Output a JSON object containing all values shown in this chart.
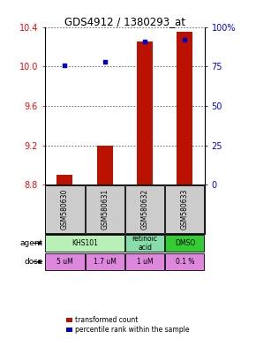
{
  "title": "GDS4912 / 1380293_at",
  "samples": [
    "GSM580630",
    "GSM580631",
    "GSM580632",
    "GSM580633"
  ],
  "bar_values": [
    8.9,
    9.2,
    10.25,
    10.35
  ],
  "bar_base": 8.8,
  "percentile_values": [
    76,
    78,
    91,
    92
  ],
  "ylim_left": [
    8.8,
    10.4
  ],
  "ylim_right": [
    0,
    100
  ],
  "yticks_left": [
    8.8,
    9.2,
    9.6,
    10.0,
    10.4
  ],
  "yticks_right": [
    0,
    25,
    50,
    75,
    100
  ],
  "bar_color": "#bb1100",
  "percentile_color": "#0000cc",
  "agent_spans": [
    [
      0,
      2,
      "KHS101",
      "#b8f0b8"
    ],
    [
      2,
      3,
      "retinoic\nacid",
      "#88ddaa"
    ],
    [
      3,
      4,
      "DMSO",
      "#33cc33"
    ]
  ],
  "dose_labels": [
    "5 uM",
    "1.7 uM",
    "1 uM",
    "0.1 %"
  ],
  "dose_color": "#dd88dd",
  "sample_box_color": "#cccccc",
  "grid_color": "#555555",
  "bar_width": 0.4
}
